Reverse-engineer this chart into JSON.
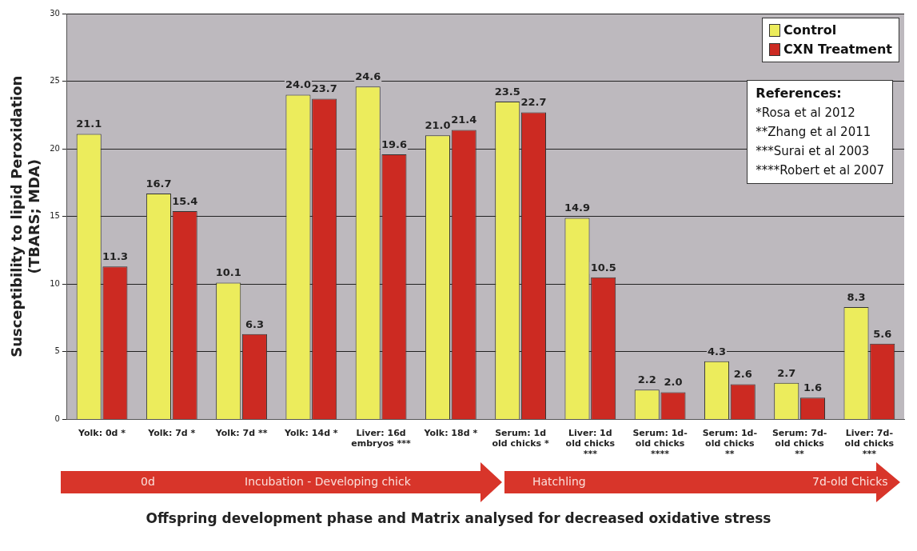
{
  "chart_data": {
    "type": "bar",
    "ylabel": "Susceptibility to lipid Peroxidation\n(TBARS; MDA)",
    "xlabel": "Offspring development phase and Matrix analysed for decreased oxidative stress",
    "categories": [
      "Yolk: 0d *",
      "Yolk: 7d *",
      "Yolk: 7d **",
      "Yolk: 14d *",
      "Liver: 16d embryos ***",
      "Yolk: 18d *",
      "Serum: 1d old chicks *",
      "Liver: 1d old chicks ***",
      "Serum: 1d- old chicks ****",
      "Serum: 1d- old chicks **",
      "Serum: 7d- old chicks **",
      "Liver: 7d- old chicks ***"
    ],
    "series": [
      {
        "name": "Control",
        "color": "#ecec5c",
        "values": [
          21.1,
          16.7,
          10.1,
          24.0,
          24.6,
          21.0,
          23.5,
          14.9,
          2.2,
          4.3,
          2.7,
          8.3
        ],
        "value_labels": [
          "21.1",
          "16.7",
          "10.1",
          "24.0",
          "24.6",
          "21.0",
          "23.5",
          "14.9",
          "2.2",
          "4.3",
          "2.7",
          "8.3"
        ]
      },
      {
        "name": "CXN Treatment",
        "color": "#cc2a22",
        "values": [
          11.3,
          15.4,
          6.3,
          23.7,
          19.6,
          21.4,
          22.7,
          10.5,
          2.0,
          2.6,
          1.6,
          5.6
        ],
        "value_labels": [
          "11.3",
          "15.4",
          "6.3",
          "23.7",
          "19.6",
          "21.4",
          "22.7",
          "10.5",
          "2.0",
          "2.6",
          "1.6",
          "5.6"
        ]
      }
    ],
    "ylim": [
      0,
      30
    ],
    "yticks": [
      0,
      5,
      10,
      15,
      20,
      25,
      30
    ],
    "grid": "y",
    "legend": "top right",
    "annotations": [
      "References:\n*Rosa et al 2012\n**Zhang et al 2011\n***Surai et al 2003\n****Robert et al 2007",
      "0d",
      "Incubation - Developing chick",
      "Hatchling",
      "7d-old Chicks"
    ]
  }
}
